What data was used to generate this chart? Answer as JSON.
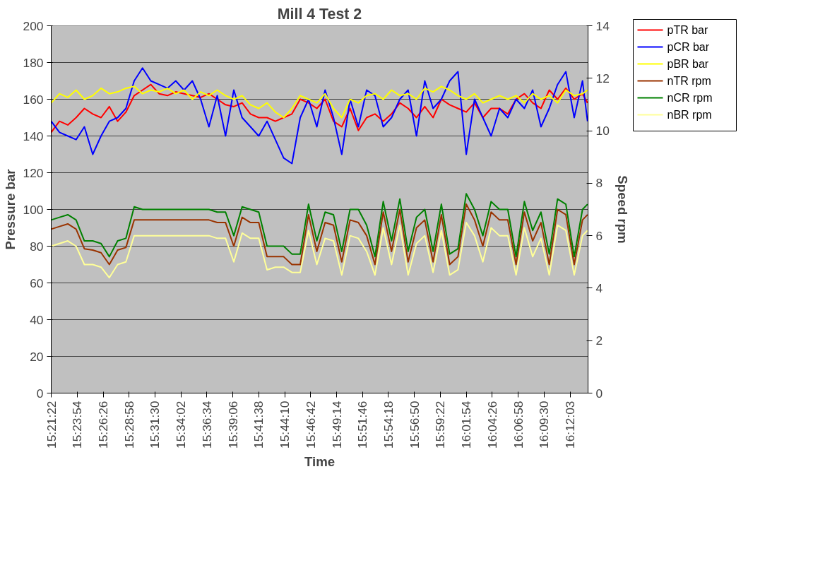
{
  "chart_data": {
    "type": "line",
    "title": "Mill 4 Test 2",
    "xlabel": "Time",
    "ylabel": "Pressure bar",
    "y2label": "Speed rpm",
    "x": [
      15.3561,
      15.3696,
      15.3831,
      15.3966,
      15.4101,
      15.4237,
      15.4372,
      15.4507,
      15.4642,
      15.4777,
      15.4912,
      15.5047,
      15.5182,
      15.5317,
      15.5452,
      15.5588,
      15.5723,
      15.5858,
      15.5993,
      15.6128,
      15.6263,
      15.6398,
      15.6533,
      15.6668,
      15.6804,
      15.6939,
      15.7074,
      15.7209,
      15.7344,
      15.7479,
      15.7614,
      15.7749,
      15.7884,
      15.8019,
      15.8155,
      15.829,
      15.8425,
      15.856,
      15.8695,
      15.883,
      15.8965,
      15.91,
      15.9235,
      15.937,
      15.9506,
      15.9641,
      15.9776,
      15.9911,
      16.0046,
      16.0181,
      16.0316,
      16.0451,
      16.0586,
      16.0721,
      16.0857,
      16.0992,
      16.1127,
      16.1262,
      16.1397,
      16.1532,
      16.1667,
      16.1802,
      16.1937,
      16.2073,
      16.2208,
      16.229
    ],
    "xlim": [
      15.3561,
      16.2298
    ],
    "xticks": [
      {
        "value": 15.3561,
        "label": "15:21:22"
      },
      {
        "value": 15.3983,
        "label": "15:23:54"
      },
      {
        "value": 15.4406,
        "label": "15:26:26"
      },
      {
        "value": 15.4828,
        "label": "15:28:58"
      },
      {
        "value": 15.525,
        "label": "15:31:30"
      },
      {
        "value": 15.5672,
        "label": "15:34:02"
      },
      {
        "value": 15.6094,
        "label": "15:36:34"
      },
      {
        "value": 15.6517,
        "label": "15:39:06"
      },
      {
        "value": 15.6939,
        "label": "15:41:38"
      },
      {
        "value": 15.7361,
        "label": "15:44:10"
      },
      {
        "value": 15.7783,
        "label": "15:46:42"
      },
      {
        "value": 15.8206,
        "label": "15:49:14"
      },
      {
        "value": 15.8628,
        "label": "15:51:46"
      },
      {
        "value": 15.905,
        "label": "15:54:18"
      },
      {
        "value": 15.9472,
        "label": "15:56:50"
      },
      {
        "value": 15.9894,
        "label": "15:59:22"
      },
      {
        "value": 16.0317,
        "label": "16:01:54"
      },
      {
        "value": 16.0739,
        "label": "16:04:26"
      },
      {
        "value": 16.1161,
        "label": "16:06:58"
      },
      {
        "value": 16.1583,
        "label": "16:09:30"
      },
      {
        "value": 16.2008,
        "label": "16:12:03"
      }
    ],
    "ylim": [
      0,
      200
    ],
    "yticks": [
      0,
      20,
      40,
      60,
      80,
      100,
      120,
      140,
      160,
      180,
      200
    ],
    "y2lim": [
      0,
      14
    ],
    "y2ticks": [
      0,
      2,
      4,
      6,
      8,
      10,
      12,
      14
    ],
    "grid": "y",
    "legend": "right",
    "marker": "none",
    "line_style": "solid",
    "series": [
      {
        "name": "pTR bar",
        "color": "#ff0000",
        "values": [
          142,
          148,
          146,
          150,
          155,
          152,
          150,
          156,
          148,
          153,
          162,
          165,
          168,
          163,
          162,
          164,
          163,
          162,
          161,
          163,
          160,
          157,
          156,
          158,
          152,
          150,
          150,
          148,
          150,
          152,
          160,
          158,
          155,
          160,
          148,
          145,
          155,
          143,
          150,
          152,
          148,
          152,
          158,
          155,
          150,
          156,
          150,
          160,
          157,
          155,
          153,
          158,
          150,
          155,
          155,
          152,
          160,
          163,
          158,
          155,
          165,
          160,
          166,
          160,
          163,
          158
        ]
      },
      {
        "name": "pCR bar",
        "color": "#0000ff",
        "values": [
          148,
          142,
          140,
          138,
          145,
          130,
          140,
          148,
          150,
          155,
          170,
          177,
          170,
          168,
          166,
          170,
          165,
          170,
          160,
          145,
          162,
          140,
          165,
          150,
          145,
          140,
          148,
          138,
          128,
          125,
          150,
          160,
          145,
          165,
          150,
          130,
          160,
          145,
          165,
          162,
          145,
          150,
          160,
          165,
          140,
          170,
          155,
          160,
          170,
          175,
          130,
          160,
          150,
          140,
          155,
          150,
          160,
          155,
          165,
          145,
          155,
          168,
          175,
          150,
          170,
          148
        ]
      },
      {
        "name": "pBR bar",
        "color": "#ffff00",
        "values": [
          158,
          163,
          161,
          165,
          160,
          162,
          166,
          163,
          164,
          166,
          167,
          163,
          165,
          164,
          166,
          163,
          165,
          160,
          164,
          162,
          165,
          162,
          160,
          162,
          157,
          155,
          158,
          153,
          150,
          155,
          162,
          160,
          158,
          163,
          155,
          150,
          160,
          158,
          162,
          163,
          160,
          165,
          162,
          163,
          160,
          166,
          164,
          167,
          165,
          162,
          160,
          163,
          158,
          160,
          162,
          160,
          162,
          158,
          163,
          160,
          162,
          158,
          165,
          162,
          163,
          165
        ]
      },
      {
        "name": "nTR rpm",
        "color": "#993300",
        "axis": "y2",
        "values": [
          6.25,
          6.35,
          6.45,
          6.25,
          5.5,
          5.45,
          5.35,
          4.9,
          5.45,
          5.55,
          6.6,
          6.6,
          6.6,
          6.6,
          6.6,
          6.6,
          6.6,
          6.6,
          6.6,
          6.6,
          6.5,
          6.5,
          5.6,
          6.7,
          6.5,
          6.5,
          5.2,
          5.2,
          5.2,
          4.9,
          4.9,
          6.8,
          5.4,
          6.5,
          6.4,
          5.0,
          6.6,
          6.5,
          6.0,
          4.9,
          6.9,
          5.4,
          7.0,
          5.0,
          6.3,
          6.6,
          5.0,
          6.8,
          4.9,
          5.2,
          7.2,
          6.6,
          5.6,
          6.9,
          6.6,
          6.6,
          4.9,
          6.9,
          5.8,
          6.5,
          4.9,
          7.0,
          6.8,
          4.9,
          6.6,
          6.8
        ]
      },
      {
        "name": "nCR rpm",
        "color": "#008000",
        "axis": "y2",
        "values": [
          6.6,
          6.7,
          6.8,
          6.6,
          5.8,
          5.8,
          5.7,
          5.2,
          5.8,
          5.9,
          7.1,
          7.0,
          7.0,
          7.0,
          7.0,
          7.0,
          7.0,
          7.0,
          7.0,
          7.0,
          6.9,
          6.9,
          6.0,
          7.1,
          7.0,
          6.9,
          5.6,
          5.6,
          5.6,
          5.3,
          5.3,
          7.2,
          5.8,
          6.9,
          6.8,
          5.4,
          7.0,
          7.0,
          6.4,
          5.2,
          7.3,
          5.8,
          7.4,
          5.4,
          6.7,
          7.0,
          5.4,
          7.2,
          5.3,
          5.5,
          7.6,
          7.0,
          6.0,
          7.3,
          7.0,
          7.0,
          5.2,
          7.3,
          6.2,
          6.9,
          5.3,
          7.4,
          7.2,
          5.2,
          7.0,
          7.2
        ]
      },
      {
        "name": "nBR rpm",
        "color": "#ffff99",
        "axis": "y2",
        "values": [
          5.6,
          5.7,
          5.8,
          5.6,
          4.9,
          4.9,
          4.8,
          4.4,
          4.9,
          5.0,
          6.0,
          6.0,
          6.0,
          6.0,
          6.0,
          6.0,
          6.0,
          6.0,
          6.0,
          6.0,
          5.9,
          5.9,
          5.0,
          6.1,
          5.9,
          5.9,
          4.7,
          4.8,
          4.8,
          4.6,
          4.6,
          6.2,
          4.9,
          5.9,
          5.8,
          4.5,
          6.0,
          5.9,
          5.4,
          4.5,
          6.3,
          4.9,
          6.4,
          4.5,
          5.7,
          6.0,
          4.6,
          6.2,
          4.5,
          4.7,
          6.5,
          6.0,
          5.0,
          6.3,
          6.0,
          6.0,
          4.5,
          6.3,
          5.2,
          5.9,
          4.5,
          6.4,
          6.2,
          4.5,
          6.0,
          6.2
        ]
      }
    ]
  }
}
